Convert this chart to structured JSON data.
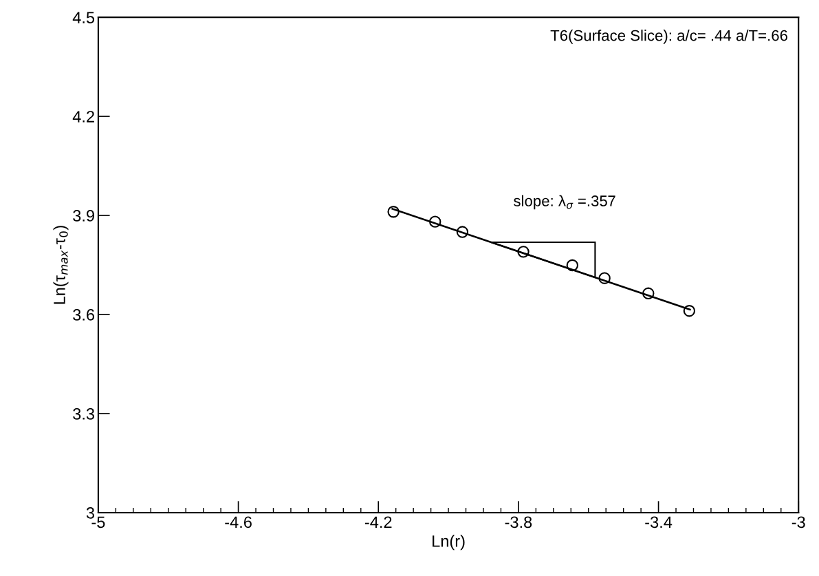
{
  "chart_data": {
    "type": "scatter",
    "xlabel": "Ln(r)",
    "ylabel": "Ln(τ$_{max}$-τ$_{0}$)",
    "annotations": [
      "T6(Surface Slice): a/c= .44 a/T=.66",
      "slope: λ$_{σ}$ =.357"
    ],
    "grid": false,
    "legend": false,
    "xlim": [
      -5,
      -3
    ],
    "xticks": [
      -5,
      -4.6,
      -4.2,
      -3.8,
      -3.4,
      -3
    ],
    "ylim": [
      3,
      4.5
    ],
    "yticks": [
      3,
      3.3,
      3.6,
      3.9,
      4.2,
      4.5
    ],
    "series": [
      {
        "marker": "circle",
        "color": "#000000",
        "x": [
          -4.157,
          -4.038,
          -3.96,
          -3.786,
          -3.646,
          -3.554,
          -3.429,
          -3.312
        ],
        "values": [
          3.911,
          3.881,
          3.85,
          3.79,
          3.749,
          3.71,
          3.664,
          3.611
        ]
      },
      {
        "type": "line",
        "marker": "none",
        "line_style": "solid",
        "color": "#000000",
        "x": [
          -4.16,
          -3.31
        ],
        "values": [
          3.92,
          3.615
        ]
      }
    ]
  }
}
